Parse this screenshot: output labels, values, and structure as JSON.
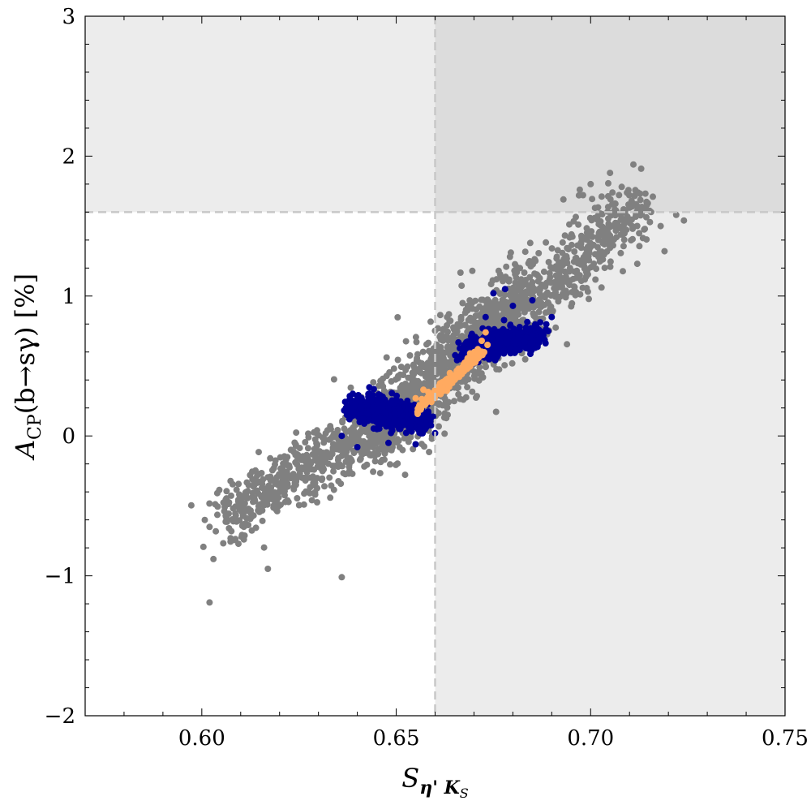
{
  "chart_data": {
    "type": "scatter",
    "title": "",
    "xlabel": "S",
    "xlabel_sub": "η' K",
    "xlabel_subsub": "S",
    "ylabel": "A",
    "ylabel_sub": "CP",
    "ylabel_rest": "(b→sγ) [%]",
    "xlim": [
      0.57,
      0.75
    ],
    "ylim": [
      -2,
      3
    ],
    "xticks": [
      0.6,
      0.65,
      0.7,
      0.75
    ],
    "xtick_labels": [
      "0.60",
      "0.65",
      "0.70",
      "0.75"
    ],
    "yticks": [
      -2,
      -1,
      0,
      1,
      2,
      3
    ],
    "ytick_labels": [
      "−2",
      "−1",
      "0",
      "1",
      "2",
      "3"
    ],
    "grid": false,
    "excluded_regions": {
      "x_threshold": 0.66,
      "y_threshold": 1.6,
      "colors": {
        "light": "#ececec",
        "dark": "#dcdcdc",
        "line": "#c8c8c8"
      }
    },
    "series": [
      {
        "color": "#808080",
        "point_radius": 4,
        "clusters": [
          {
            "n": 1400,
            "x0": 0.642,
            "y0": -0.05,
            "x1": 0.685,
            "y1": 1.05,
            "spread": 0.24,
            "count_scale": 1
          },
          {
            "n": 500,
            "x0": 0.605,
            "y0": -0.6,
            "x1": 0.645,
            "y1": 0.05,
            "spread": 0.2,
            "count_scale": 1
          },
          {
            "n": 320,
            "x0": 0.688,
            "y0": 1.0,
            "x1": 0.712,
            "y1": 1.7,
            "spread": 0.22,
            "count_scale": 1
          }
        ],
        "points": [
          [
            0.602,
            -0.65
          ],
          [
            0.603,
            -0.88
          ],
          [
            0.602,
            -1.19
          ],
          [
            0.607,
            -0.66
          ],
          [
            0.617,
            -0.95
          ],
          [
            0.636,
            -1.01
          ],
          [
            0.705,
            1.88
          ],
          [
            0.708,
            1.78
          ],
          [
            0.711,
            1.94
          ],
          [
            0.713,
            1.91
          ],
          [
            0.716,
            1.71
          ],
          [
            0.722,
            1.58
          ],
          [
            0.724,
            1.54
          ],
          [
            0.718,
            1.5
          ],
          [
            0.719,
            1.32
          ],
          [
            0.712,
            1.23
          ],
          [
            0.7,
            1.8
          ],
          [
            0.697,
            1.72
          ],
          [
            0.693,
            1.69
          ],
          [
            0.702,
            1.4
          ]
        ]
      },
      {
        "color": "#000099",
        "point_radius": 4,
        "clusters": [
          {
            "n": 650,
            "x0": 0.639,
            "y0": 0.22,
            "x1": 0.657,
            "y1": 0.1,
            "spread": 0.09
          },
          {
            "n": 550,
            "x0": 0.668,
            "y0": 0.6,
            "x1": 0.687,
            "y1": 0.72,
            "spread": 0.09
          }
        ],
        "points": [
          [
            0.636,
            0.0
          ],
          [
            0.64,
            -0.08
          ],
          [
            0.648,
            -0.05
          ],
          [
            0.655,
            -0.06
          ],
          [
            0.66,
            0.02
          ],
          [
            0.675,
            1.02
          ],
          [
            0.68,
            0.93
          ],
          [
            0.685,
            0.97
          ],
          [
            0.69,
            0.85
          ],
          [
            0.673,
            0.85
          ],
          [
            0.678,
            1.05
          ]
        ]
      },
      {
        "color": "#ffaa60",
        "point_radius": 4,
        "clusters": [
          {
            "n": 260,
            "x0": 0.657,
            "y0": 0.23,
            "x1": 0.672,
            "y1": 0.6,
            "spread": 0.025
          }
        ],
        "points": [
          [
            0.656,
            0.22
          ],
          [
            0.655,
            0.27
          ],
          [
            0.657,
            0.33
          ],
          [
            0.662,
            0.32
          ],
          [
            0.666,
            0.48
          ],
          [
            0.668,
            0.53
          ],
          [
            0.671,
            0.62
          ],
          [
            0.672,
            0.68
          ],
          [
            0.673,
            0.74
          ],
          [
            0.669,
            0.59
          ],
          [
            0.664,
            0.44
          ]
        ]
      }
    ]
  }
}
